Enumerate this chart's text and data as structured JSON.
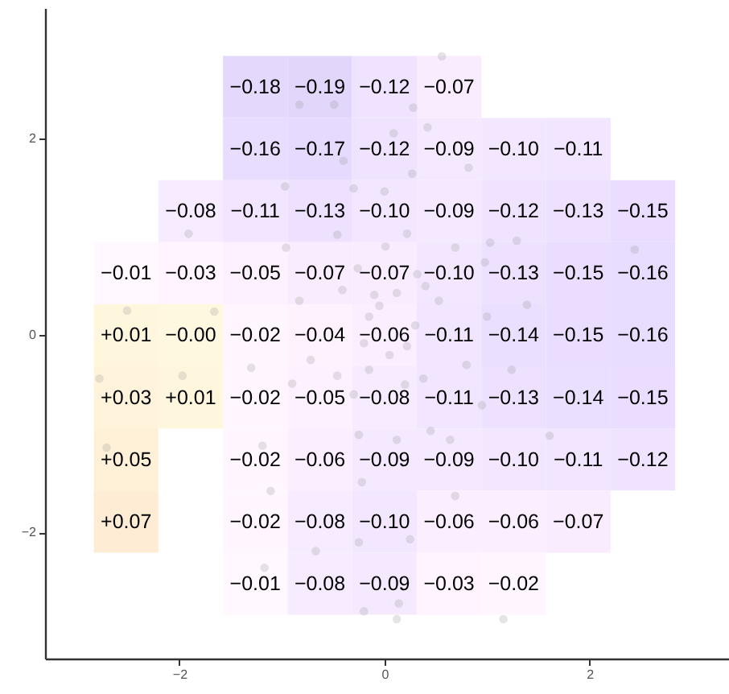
{
  "chart_data": {
    "type": "heatmap",
    "x": [
      -2.52,
      -1.89,
      -1.26,
      -0.63,
      0,
      0.63,
      1.26,
      1.89,
      2.52
    ],
    "y": [
      2.52,
      1.89,
      1.26,
      0.63,
      0,
      -0.63,
      -1.26,
      -1.89,
      -2.52
    ],
    "cells": [
      [
        null,
        null,
        -0.18,
        -0.19,
        -0.12,
        -0.07,
        null,
        null,
        null
      ],
      [
        null,
        null,
        -0.16,
        -0.17,
        -0.12,
        -0.09,
        -0.1,
        -0.11,
        null
      ],
      [
        null,
        -0.08,
        -0.11,
        -0.13,
        -0.1,
        -0.09,
        -0.12,
        -0.13,
        -0.15
      ],
      [
        -0.01,
        -0.03,
        -0.05,
        -0.07,
        -0.07,
        -0.1,
        -0.13,
        -0.15,
        -0.16
      ],
      [
        0.01,
        0.0,
        -0.02,
        -0.04,
        -0.06,
        -0.11,
        -0.14,
        -0.15,
        -0.16
      ],
      [
        0.03,
        0.01,
        -0.02,
        -0.05,
        -0.08,
        -0.11,
        -0.13,
        -0.14,
        -0.15
      ],
      [
        0.05,
        null,
        -0.02,
        -0.06,
        -0.09,
        -0.09,
        -0.1,
        -0.11,
        -0.12
      ],
      [
        0.07,
        null,
        -0.02,
        -0.08,
        -0.1,
        -0.06,
        -0.06,
        -0.07,
        null
      ],
      [
        null,
        null,
        -0.01,
        -0.08,
        -0.09,
        -0.03,
        -0.02,
        null,
        null
      ]
    ],
    "cell_labels": [
      [
        null,
        null,
        "−0.18",
        "−0.19",
        "−0.12",
        "−0.07",
        null,
        null,
        null
      ],
      [
        null,
        null,
        "−0.16",
        "−0.17",
        "−0.12",
        "−0.09",
        "−0.10",
        "−0.11",
        null
      ],
      [
        null,
        "−0.08",
        "−0.11",
        "−0.13",
        "−0.10",
        "−0.09",
        "−0.12",
        "−0.13",
        "−0.15"
      ],
      [
        "−0.01",
        "−0.03",
        "−0.05",
        "−0.07",
        "−0.07",
        "−0.10",
        "−0.13",
        "−0.15",
        "−0.16"
      ],
      [
        "+0.01",
        "−0.00",
        "−0.02",
        "−0.04",
        "−0.06",
        "−0.11",
        "−0.14",
        "−0.15",
        "−0.16"
      ],
      [
        "+0.03",
        "+0.01",
        "−0.02",
        "−0.05",
        "−0.08",
        "−0.11",
        "−0.13",
        "−0.14",
        "−0.15"
      ],
      [
        "+0.05",
        null,
        "−0.02",
        "−0.06",
        "−0.09",
        "−0.09",
        "−0.10",
        "−0.11",
        "−0.12"
      ],
      [
        "+0.07",
        null,
        "−0.02",
        "−0.08",
        "−0.10",
        "−0.06",
        "−0.06",
        "−0.07",
        null
      ],
      [
        null,
        null,
        "−0.01",
        "−0.08",
        "−0.09",
        "−0.03",
        "−0.02",
        null,
        null
      ]
    ],
    "colors": [
      "#e2d6fb",
      "#ffffff",
      "#fcd9c2"
    ],
    "series": [
      {
        "type": "scatter",
        "color": "#999999",
        "x": [
          0.56,
          -0.83,
          -0.49,
          0.28,
          0.42,
          0.09,
          -0.4,
          0.27,
          0.82,
          -0.97,
          -0.3,
          0.0,
          -1.91,
          -0.46,
          0.22,
          1.29,
          2.44,
          -0.96,
          0.01,
          0.69,
          1.03,
          -0.1,
          0.12,
          0.53,
          0.98,
          1.0,
          1.39,
          -0.83,
          -0.41,
          -2.51,
          -1.66,
          -0.26,
          0.32,
          -0.15,
          -2.78,
          -1.97,
          -1.3,
          -0.9,
          -0.46,
          -0.15,
          0.38,
          0.8,
          1.24,
          -0.2,
          0.22,
          -0.72,
          -2.71,
          -1.19,
          -0.25,
          0.12,
          0.64,
          1.61,
          -1.11,
          -0.22,
          0.69,
          -0.25,
          0.25,
          -0.67,
          -1.17,
          0.14,
          -0.2,
          0.12,
          1.16,
          0.45,
          0.95,
          0.05,
          0.3,
          -0.05,
          0.2,
          -0.3,
          0.4
        ],
        "values": [
          2.83,
          2.34,
          2.34,
          2.31,
          2.11,
          2.05,
          1.77,
          1.64,
          1.7,
          1.51,
          1.49,
          1.46,
          1.03,
          1.02,
          1.03,
          0.96,
          0.87,
          0.89,
          0.9,
          0.89,
          0.94,
          0.41,
          0.43,
          0.35,
          0.74,
          0.19,
          0.31,
          0.35,
          0.46,
          0.25,
          0.24,
          0.68,
          0.62,
          0.19,
          -0.44,
          -0.41,
          -0.33,
          -0.49,
          -0.41,
          -0.35,
          -0.44,
          -0.3,
          -0.35,
          -0.08,
          -0.11,
          -0.25,
          -1.14,
          -1.12,
          -1.01,
          -1.06,
          -1.06,
          -1.02,
          -1.58,
          -1.49,
          -1.63,
          -2.1,
          -2.07,
          -2.19,
          -2.36,
          -2.72,
          -2.8,
          -2.88,
          -2.88,
          -0.97,
          -0.71,
          -0.2,
          0.1,
          0.3,
          -0.5,
          -0.6,
          0.5
        ]
      }
    ],
    "xlim": [
      -3.31,
      3.36
    ],
    "ylim": [
      -3.28,
      3.32
    ],
    "xticks": [
      {
        "value": -2,
        "label": "−2"
      },
      0,
      2
    ],
    "yticks": [
      {
        "value": -2,
        "label": "−2"
      },
      0,
      2
    ],
    "grid": false
  }
}
